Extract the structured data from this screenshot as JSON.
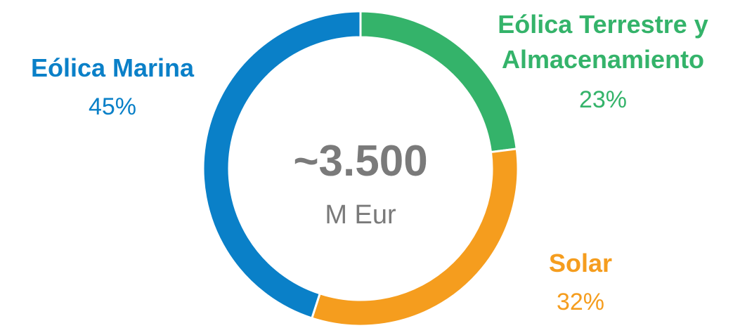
{
  "chart_data": {
    "type": "donut",
    "categories": [
      "Eólica Terrestre y\nAlmacenamiento",
      "Solar",
      "Eólica Marina"
    ],
    "values": [
      23,
      32,
      45
    ],
    "value_labels": [
      "23%",
      "32%",
      "45%"
    ],
    "colors": [
      "#34b36a",
      "#f59d1e",
      "#0a80c8"
    ],
    "center_label": "~3.500",
    "center_sublabel": "M Eur"
  }
}
